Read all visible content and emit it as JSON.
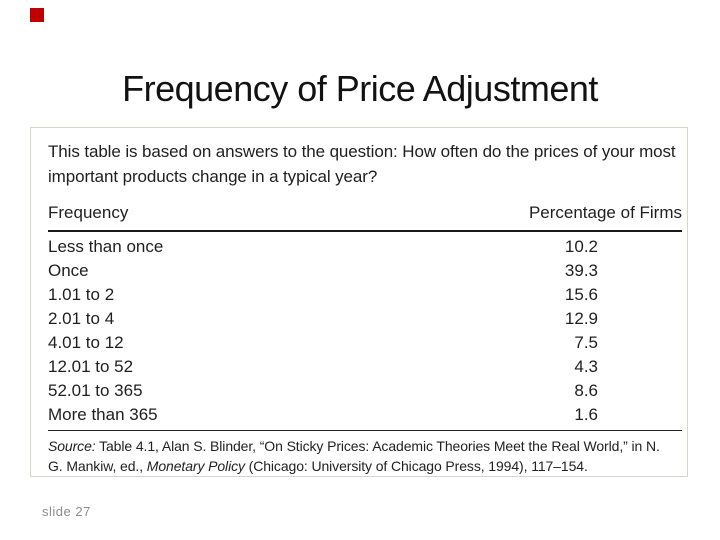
{
  "slide": {
    "title": "Frequency of Price Adjustment",
    "slide_number_label": "slide 27",
    "accent_color": "#c00000",
    "accent_square_icon": "red-square-decoration"
  },
  "table": {
    "intro": "This table is based on answers to the question: How often do the prices of your most important products change in a typical year?",
    "columns": [
      "Frequency",
      "Percentage of Firms"
    ],
    "rows": [
      {
        "frequency": "Less than once",
        "percentage": "10.2"
      },
      {
        "frequency": "Once",
        "percentage": "39.3"
      },
      {
        "frequency": "1.01 to 2",
        "percentage": "15.6"
      },
      {
        "frequency": "2.01 to 4",
        "percentage": "12.9"
      },
      {
        "frequency": "4.01 to 12",
        "percentage": "7.5"
      },
      {
        "frequency": "12.01 to 52",
        "percentage": "4.3"
      },
      {
        "frequency": "52.01 to 365",
        "percentage": "8.6"
      },
      {
        "frequency": "More than 365",
        "percentage": "1.6"
      }
    ],
    "source": {
      "prefix": "Source:",
      "part1": " Table 4.1, Alan S. Blinder, “On Sticky Prices: Academic Theories Meet the Real World,” in N. G. Mankiw, ed., ",
      "italic_title": "Monetary Policy",
      "part2": " (Chicago: University of Chicago Press, 1994), 117–154."
    }
  }
}
